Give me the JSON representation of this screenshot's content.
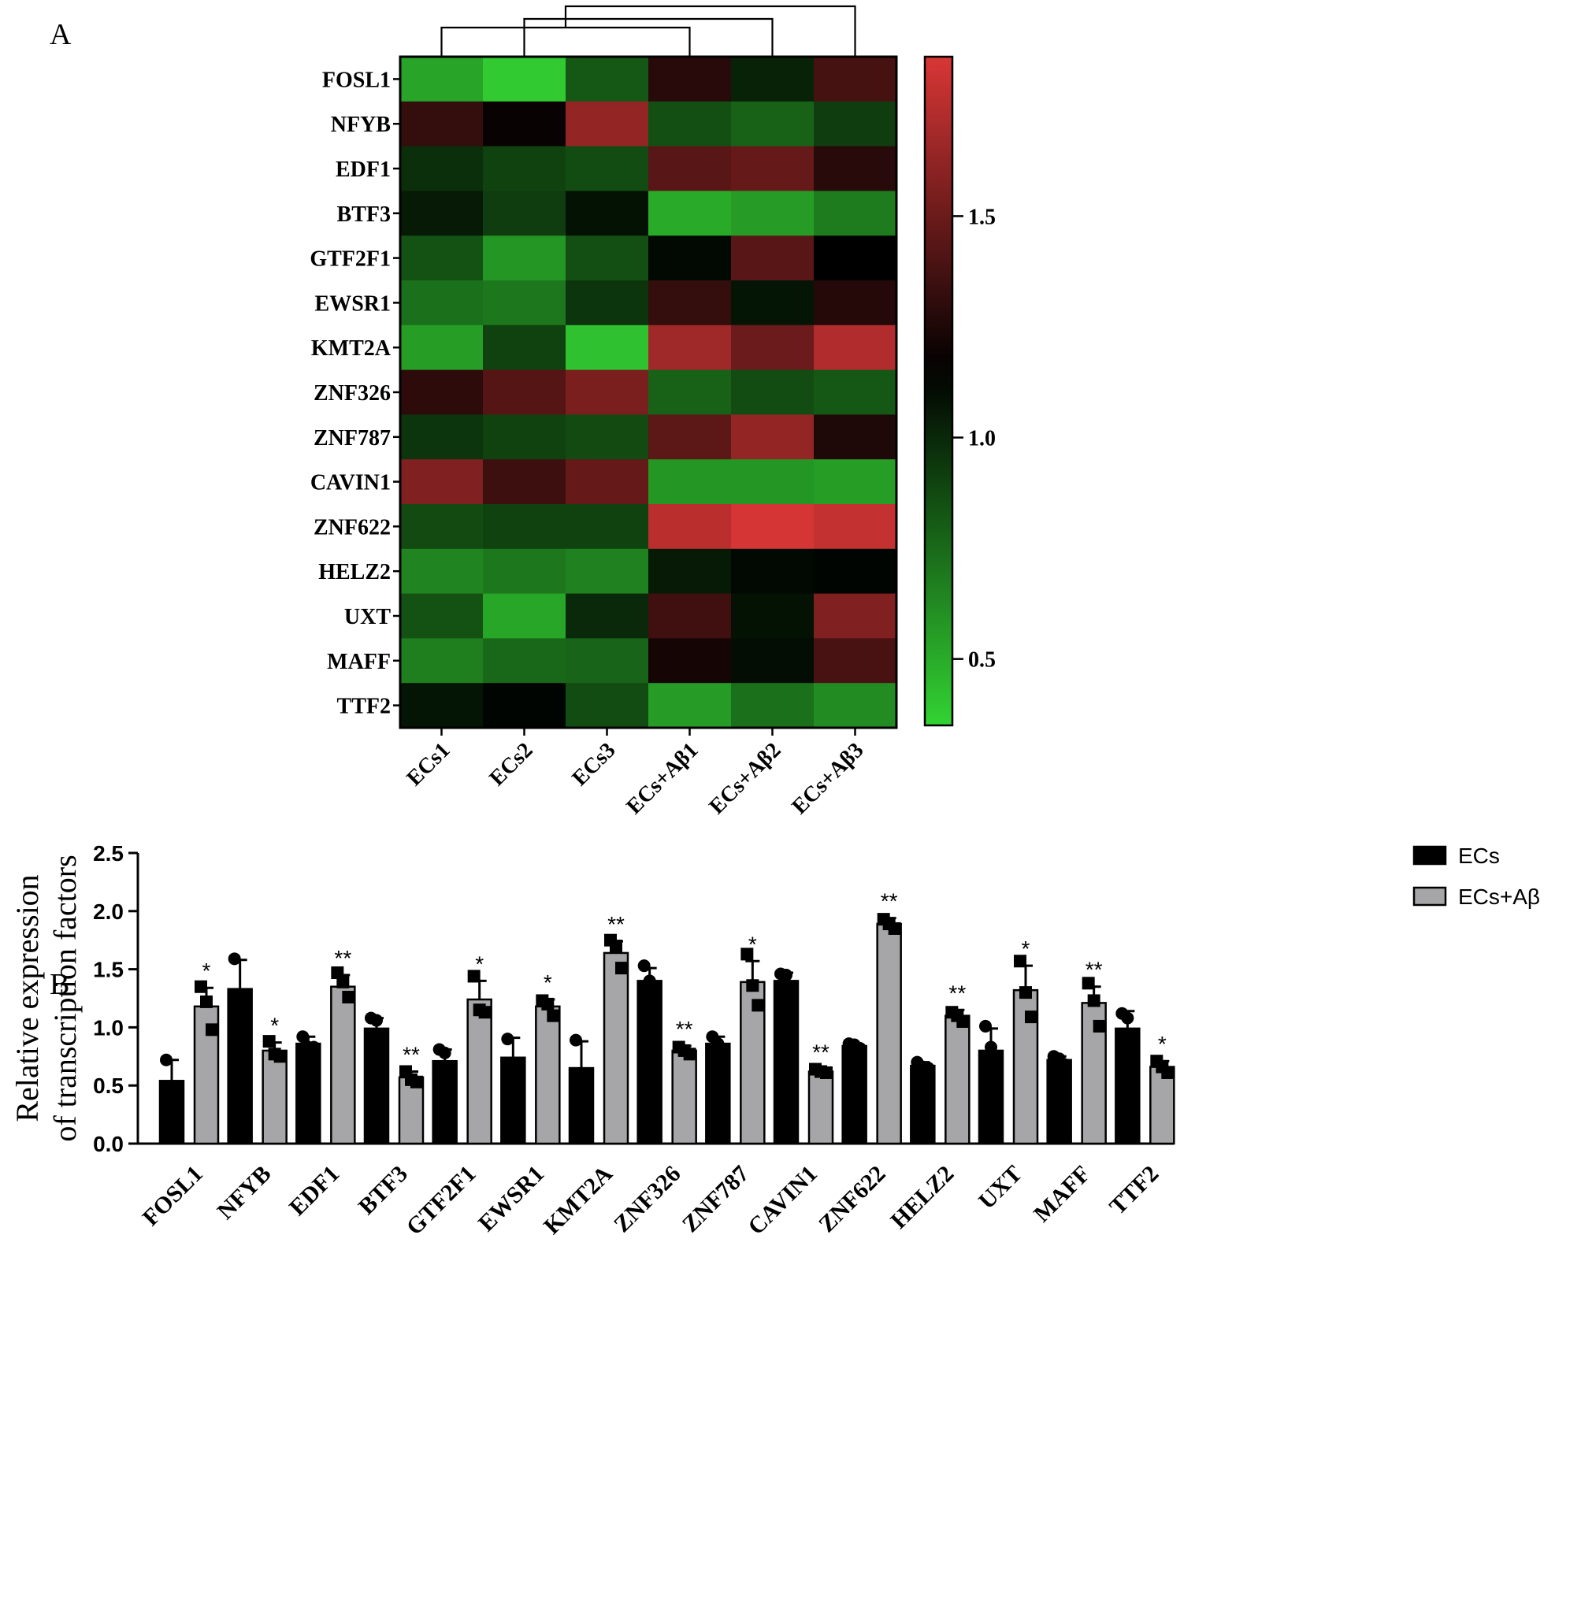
{
  "panel_labels": {
    "a": "A",
    "b": "B"
  },
  "chart_data": [
    {
      "type": "heatmap",
      "panel": "A",
      "title": "",
      "columns": [
        "ECs1",
        "ECs2",
        "ECs3",
        "ECs+Aβ1",
        "ECs+Aβ2",
        "ECs+Aβ3"
      ],
      "rows": [
        "FOSL1",
        "NFYB",
        "EDF1",
        "BTF3",
        "GTF2F1",
        "EWSR1",
        "KMT2A",
        "ZNF326",
        "ZNF787",
        "CAVIN1",
        "ZNF622",
        "HELZ2",
        "UXT",
        "MAFF",
        "TTF2"
      ],
      "values": [
        [
          0.53,
          0.38,
          0.82,
          1.28,
          1.02,
          1.38
        ],
        [
          1.32,
          1.18,
          1.63,
          0.85,
          0.78,
          0.92
        ],
        [
          0.97,
          0.9,
          0.86,
          1.44,
          1.48,
          1.28
        ],
        [
          1.05,
          0.92,
          1.08,
          0.5,
          0.56,
          0.68
        ],
        [
          0.84,
          0.58,
          0.85,
          1.12,
          1.44,
          1.15
        ],
        [
          0.72,
          0.7,
          0.95,
          1.32,
          1.07,
          1.27
        ],
        [
          0.55,
          0.9,
          0.42,
          1.67,
          1.5,
          1.73
        ],
        [
          1.3,
          1.43,
          1.55,
          0.78,
          0.86,
          0.82
        ],
        [
          0.95,
          0.9,
          0.87,
          1.45,
          1.63,
          1.25
        ],
        [
          1.57,
          1.35,
          1.48,
          0.58,
          0.58,
          0.55
        ],
        [
          0.87,
          0.9,
          0.9,
          1.76,
          1.85,
          1.79
        ],
        [
          0.65,
          0.7,
          0.66,
          1.05,
          1.12,
          1.13
        ],
        [
          0.84,
          0.52,
          1.0,
          1.36,
          1.08,
          1.57
        ],
        [
          0.67,
          0.76,
          0.77,
          1.22,
          1.1,
          1.39
        ],
        [
          1.07,
          1.13,
          0.86,
          0.56,
          0.72,
          0.62
        ]
      ],
      "colorbar": {
        "min": 0.35,
        "max": 1.86,
        "ticks": [
          0.5,
          1.0,
          1.5
        ],
        "tick_labels": [
          "0.5",
          "1.0",
          "1.5"
        ],
        "low_color": "#33d333",
        "mid_color": "#000000",
        "high_color": "#d93636"
      },
      "dendrogram": "columns"
    },
    {
      "type": "bar",
      "panel": "B",
      "title": "",
      "xlabel": "",
      "ylabel_line1": "Relative expression",
      "ylabel_line2": "of transcription factors",
      "ylim": [
        0,
        2.5
      ],
      "yticks": [
        "0.0",
        "0.5",
        "1.0",
        "1.5",
        "2.0",
        "2.5"
      ],
      "categories": [
        "FOSL1",
        "NFYB",
        "EDF1",
        "BTF3",
        "GTF2F1",
        "EWSR1",
        "KMT2A",
        "ZNF326",
        "ZNF787",
        "CAVIN1",
        "ZNF622",
        "HELZ2",
        "UXT",
        "MAFF",
        "TTF2"
      ],
      "series": [
        {
          "name": "ECs",
          "color": "#000000",
          "values": [
            0.54,
            1.33,
            0.86,
            0.99,
            0.71,
            0.74,
            0.65,
            1.4,
            0.86,
            1.4,
            0.84,
            0.67,
            0.8,
            0.72,
            0.99
          ],
          "error": [
            0.18,
            0.25,
            0.06,
            0.09,
            0.1,
            0.17,
            0.23,
            0.11,
            0.06,
            0.07,
            0.02,
            0.03,
            0.19,
            0.03,
            0.15
          ],
          "points": [
            [
              0.72,
              0.47,
              0.43
            ],
            [
              1.59,
              1.22,
              1.18
            ],
            [
              0.92,
              0.83,
              0.83
            ],
            [
              1.08,
              1.06,
              0.83
            ],
            [
              0.81,
              0.78,
              0.55
            ],
            [
              0.9,
              0.68,
              0.64
            ],
            [
              0.89,
              0.55,
              0.51
            ],
            [
              1.53,
              1.4,
              1.27
            ],
            [
              0.92,
              0.86,
              0.8
            ],
            [
              1.46,
              1.45,
              1.29
            ],
            [
              0.86,
              0.85,
              0.82
            ],
            [
              0.7,
              0.66,
              0.65
            ],
            [
              1.01,
              0.83,
              0.57
            ],
            [
              0.75,
              0.73,
              0.68
            ],
            [
              1.12,
              1.08,
              0.77
            ]
          ]
        },
        {
          "name": "ECs+Aβ",
          "color": "#a6a6a8",
          "values": [
            1.18,
            0.8,
            1.35,
            0.57,
            1.24,
            1.18,
            1.64,
            0.8,
            1.39,
            0.62,
            1.89,
            1.1,
            1.32,
            1.21,
            0.66
          ],
          "error": [
            0.16,
            0.07,
            0.1,
            0.05,
            0.16,
            0.06,
            0.1,
            0.04,
            0.18,
            0.02,
            0.05,
            0.05,
            0.21,
            0.14,
            0.05
          ],
          "points": [
            [
              1.35,
              1.22,
              0.98
            ],
            [
              0.88,
              0.77,
              0.75
            ],
            [
              1.47,
              1.39,
              1.26
            ],
            [
              0.62,
              0.55,
              0.53
            ],
            [
              1.44,
              1.15,
              1.13
            ],
            [
              1.23,
              1.2,
              1.1
            ],
            [
              1.75,
              1.7,
              1.51
            ],
            [
              0.83,
              0.8,
              0.77
            ],
            [
              1.63,
              1.36,
              1.19
            ],
            [
              0.64,
              0.62,
              0.61
            ],
            [
              1.93,
              1.89,
              1.85
            ],
            [
              1.13,
              1.1,
              1.05
            ],
            [
              1.57,
              1.3,
              1.09
            ],
            [
              1.38,
              1.23,
              1.01
            ],
            [
              0.71,
              0.66,
              0.61
            ]
          ],
          "significance": [
            "*",
            "*",
            "**",
            "**",
            "*",
            "*",
            "**",
            "**",
            "*",
            "**",
            "**",
            "**",
            "*",
            "**",
            "*"
          ]
        }
      ],
      "legend": {
        "position": "top-right",
        "entries": [
          "ECs",
          "ECs+Aβ"
        ]
      }
    }
  ]
}
